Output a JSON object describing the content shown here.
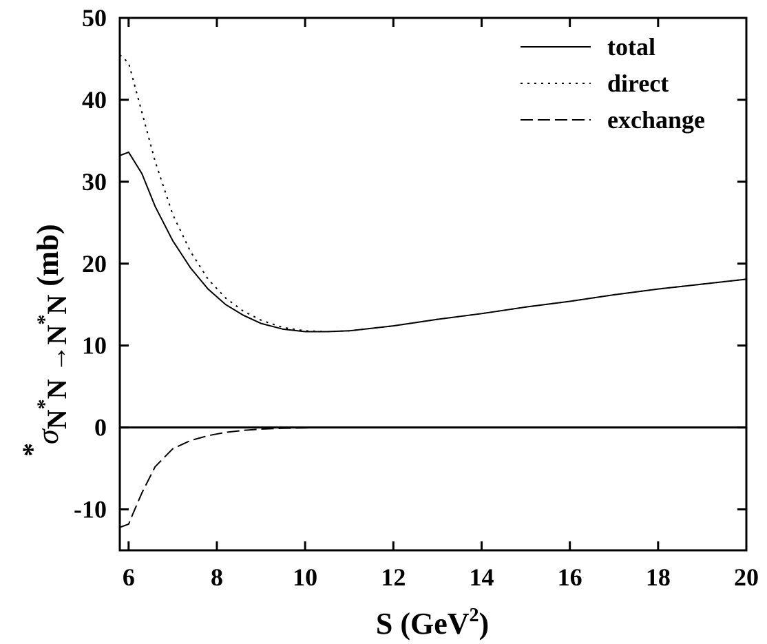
{
  "chart_data": {
    "type": "line",
    "xlabel": {
      "main": "S (GeV",
      "sup": "2",
      "close": ")"
    },
    "ylabel": {
      "star": "*",
      "sigma": "σ",
      "sub": "N",
      "sub_star1": "*",
      "sub_mid": "N →N",
      "sub_star2": "*",
      "sub_end": "N",
      "unit": "(mb)"
    },
    "xlim": [
      5.8,
      20
    ],
    "ylim": [
      -15,
      50
    ],
    "x_ticks": [
      6,
      8,
      10,
      12,
      14,
      16,
      18,
      20
    ],
    "y_ticks": [
      -10,
      0,
      10,
      20,
      30,
      40,
      50
    ],
    "grid": false,
    "legend_position": "top-right",
    "zero_line": true,
    "series": [
      {
        "name": "total",
        "style": "solid",
        "x": [
          5.8,
          6.0,
          6.3,
          6.6,
          7.0,
          7.4,
          7.8,
          8.2,
          8.6,
          9.0,
          9.5,
          10.0,
          10.5,
          11.0,
          12.0,
          13.0,
          14.0,
          15.0,
          16.0,
          17.0,
          18.0,
          19.0,
          20.0
        ],
        "y": [
          33.2,
          33.6,
          31.0,
          27.0,
          22.8,
          19.5,
          16.9,
          15.0,
          13.7,
          12.7,
          12.0,
          11.7,
          11.7,
          11.8,
          12.4,
          13.2,
          13.9,
          14.7,
          15.4,
          16.2,
          16.9,
          17.5,
          18.1
        ]
      },
      {
        "name": "direct",
        "style": "dotted",
        "x": [
          5.8,
          6.0,
          6.3,
          6.6,
          7.0,
          7.4,
          7.8,
          8.2,
          8.6,
          9.0,
          9.5,
          10.0,
          10.5,
          11.0,
          12.0,
          13.0,
          14.0,
          15.0,
          16.0,
          17.0,
          18.0,
          19.0,
          20.0
        ],
        "y": [
          45.5,
          44.5,
          38.5,
          32.5,
          26.0,
          21.5,
          18.1,
          15.8,
          14.2,
          13.1,
          12.2,
          11.8,
          11.7,
          11.8,
          12.4,
          13.2,
          13.9,
          14.7,
          15.4,
          16.2,
          16.9,
          17.5,
          18.1
        ]
      },
      {
        "name": "exchange",
        "style": "dashed",
        "x": [
          5.8,
          5.9,
          6.0,
          6.1,
          6.3,
          6.6,
          7.0,
          7.4,
          7.8,
          8.2,
          8.6,
          9.0,
          9.5,
          10.0,
          10.5,
          11.0,
          12.0,
          14.0,
          16.0,
          18.0,
          20.0
        ],
        "y": [
          -12.2,
          -12.0,
          -11.8,
          -10.5,
          -8.0,
          -4.8,
          -2.6,
          -1.6,
          -1.0,
          -0.6,
          -0.35,
          -0.2,
          -0.1,
          -0.05,
          0.0,
          0.0,
          0.0,
          0.0,
          0.0,
          0.0,
          0.0
        ]
      }
    ]
  }
}
